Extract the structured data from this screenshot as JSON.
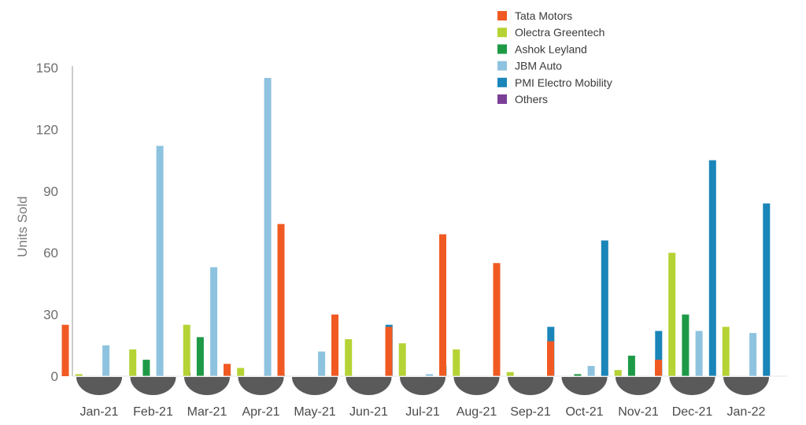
{
  "chart_data": {
    "type": "bar",
    "ylabel": "Units Sold",
    "ylim": [
      0,
      150
    ],
    "yticks": [
      0,
      30,
      60,
      90,
      120,
      150
    ],
    "legend_position": "top-right",
    "grid": false,
    "categories": [
      "Jan-21",
      "Feb-21",
      "Mar-21",
      "Apr-21",
      "May-21",
      "Jun-21",
      "Jul-21",
      "Aug-21",
      "Sep-21",
      "Oct-21",
      "Nov-21",
      "Dec-21",
      "Jan-22"
    ],
    "series": [
      {
        "name": "Tata Motors",
        "color": "#f05a22",
        "values": [
          25,
          0,
          0,
          6,
          74,
          30,
          24,
          69,
          55,
          17,
          0,
          8,
          0
        ]
      },
      {
        "name": "Olectra Greentech",
        "color": "#b5d334",
        "values": [
          1,
          13,
          25,
          4,
          0,
          18,
          16,
          13,
          2,
          0,
          3,
          60,
          24
        ]
      },
      {
        "name": "Ashok Leyland",
        "color": "#1e9a47",
        "values": [
          0,
          8,
          19,
          0,
          0,
          0,
          0,
          0,
          0,
          1,
          10,
          30,
          0
        ]
      },
      {
        "name": "JBM Auto",
        "color": "#8ec3e0",
        "values": [
          15,
          112,
          53,
          145,
          12,
          0,
          1,
          0,
          0,
          5,
          0,
          22,
          21
        ]
      },
      {
        "name": "PMI Electro Mobility",
        "color": "#1a85b8",
        "values": [
          0,
          0,
          1,
          1,
          0,
          25,
          5,
          0,
          24,
          66,
          22,
          105,
          84
        ]
      },
      {
        "name": "Others",
        "color": "#7b3f98",
        "values": [
          0,
          2,
          0,
          0,
          0,
          0,
          0,
          0,
          0,
          0,
          0,
          0,
          0
        ]
      }
    ]
  }
}
